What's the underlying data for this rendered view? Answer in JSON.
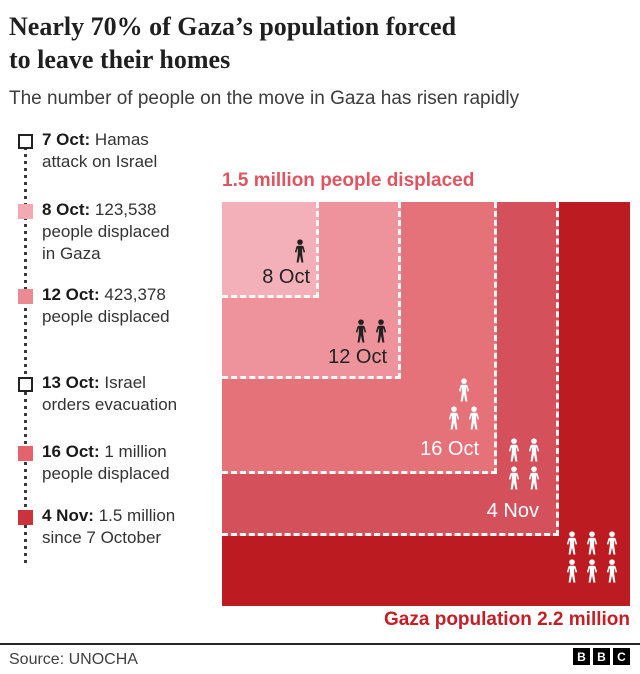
{
  "header": {
    "title_line1": "Nearly 70% of Gaza’s population forced",
    "title_line2": "to leave their homes",
    "subtitle": "The number of people on the move in Gaza has risen rapidly"
  },
  "timeline": {
    "items": [
      {
        "date": "7 Oct:",
        "rest": "Hamas",
        "line2": "attack on Israel",
        "line3": "",
        "marker_color": "#ffffff",
        "marker_border": "#222222"
      },
      {
        "date": "8 Oct:",
        "rest": "123,538",
        "line2": "people displaced",
        "line3": "in Gaza",
        "marker_color": "#f2a9b2",
        "marker_border": "#f2a9b2"
      },
      {
        "date": "12 Oct:",
        "rest": "423,378",
        "line2": "people displaced",
        "line3": "",
        "marker_color": "#ea8b93",
        "marker_border": "#ea8b93"
      },
      {
        "date": "13 Oct:",
        "rest": "Israel",
        "line2": "orders evacuation",
        "line3": "",
        "marker_color": "#ffffff",
        "marker_border": "#222222"
      },
      {
        "date": "16 Oct:",
        "rest": "1 million",
        "line2": "people displaced",
        "line3": "",
        "marker_color": "#e4636d",
        "marker_border": "#e4636d"
      },
      {
        "date": "4 Nov:",
        "rest": "1.5 million",
        "line2": "since 7 October",
        "line3": "",
        "marker_color": "#ca333b",
        "marker_border": "#ca333b"
      }
    ]
  },
  "chart_data": {
    "type": "nested-squares",
    "title": "1.5 million people displaced",
    "title_color": "#e0545f",
    "note": "Gaza population 2.2 million",
    "note_color": "#c21f26",
    "total_population": 2200000,
    "unit": "people displaced",
    "series": [
      {
        "label": "8 Oct",
        "value": 123538,
        "color": "#f4b0b8",
        "icon_count": 1,
        "icon_color": "#222222",
        "label_color": "#222222"
      },
      {
        "label": "12 Oct",
        "value": 423378,
        "color": "#ee939b",
        "icon_count": 2,
        "icon_color": "#222222",
        "label_color": "#222222"
      },
      {
        "label": "16 Oct",
        "value": 1000000,
        "color": "#e57179",
        "icon_count": 3,
        "icon_color": "#ffffff",
        "label_color": "#ffffff"
      },
      {
        "label": "4 Nov",
        "value": 1500000,
        "color": "#d4515b",
        "icon_count": 4,
        "icon_color": "#ffffff",
        "label_color": "#ffffff"
      },
      {
        "label": "Gaza population",
        "value": 2200000,
        "color": "#bd1b22",
        "icon_count": 6,
        "icon_color": "#ffffff",
        "label_color": "#ffffff"
      }
    ]
  },
  "footer": {
    "source": "Source: UNOCHA",
    "logo_letters": [
      "B",
      "B",
      "C"
    ]
  }
}
